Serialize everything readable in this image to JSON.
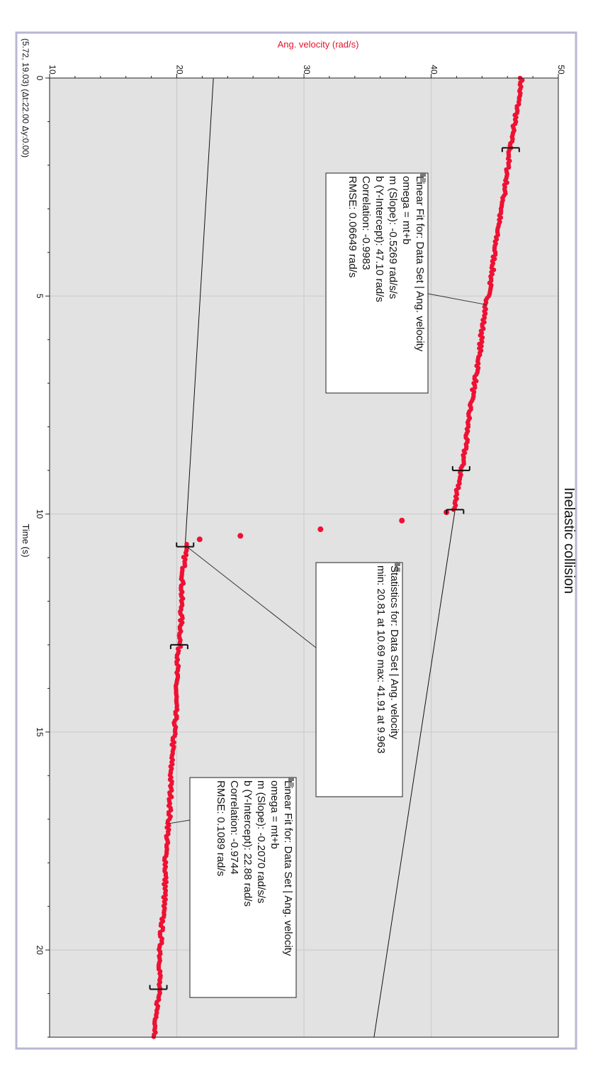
{
  "chart_data": {
    "type": "scatter",
    "title": "Inelastic collision",
    "xlabel": "Time (s)",
    "ylabel": "Ang. velocity (rad/s)",
    "xlim": [
      0,
      22
    ],
    "ylim": [
      10,
      50
    ],
    "x_ticks": [
      "0",
      "5",
      "10",
      "15",
      "20"
    ],
    "y_ticks": [
      "10",
      "20",
      "30",
      "40",
      "50"
    ],
    "grid": true,
    "coordinate_readout": "(5.72, 19.03) (Δt:22.00 Δy:0.00)",
    "colors": {
      "data": "#ee1133",
      "axis_label": "#e8102c",
      "plot_bg": "#e2e2e2",
      "frame": "#b7b7d4",
      "grid": "#c9c9c9"
    },
    "series": [
      {
        "name": "Data Set | Ang. velocity",
        "segments": [
          {
            "t_start": 0,
            "t_end": 9.9,
            "m": -0.5269,
            "b": 47.1
          },
          {
            "t_start": 10.69,
            "t_end": 22,
            "m": -0.207,
            "b": 22.88
          }
        ],
        "transition_points": [
          {
            "x": 9.96,
            "y": 41.2
          },
          {
            "x": 10.15,
            "y": 37.7
          },
          {
            "x": 10.35,
            "y": 31.3
          },
          {
            "x": 10.5,
            "y": 25.0
          },
          {
            "x": 10.58,
            "y": 21.8
          }
        ]
      }
    ],
    "fits": [
      {
        "type": "linear",
        "m": -0.5269,
        "b": 47.1,
        "range": [
          1.6,
          9.0
        ]
      },
      {
        "type": "linear",
        "m": -0.207,
        "b": 22.88,
        "range": [
          10.69,
          22.0
        ]
      }
    ],
    "bracket_times": [
      1.6,
      9.0,
      9.9,
      10.75,
      13.0,
      20.9
    ],
    "annotations": [
      {
        "header": "Linear Fit for: Data Set | Ang. velocity",
        "lines": [
          "omega = mt+b",
          "m (Slope): -0.5269 rad/s/s",
          "b (Y-Intercept): 47.10 rad/s",
          "Correlation: -0.9983",
          "RMSE: 0.06649 rad/s"
        ],
        "points_to": {
          "x": 5.2,
          "y": 44.36
        }
      },
      {
        "header": "Statistics for: Data Set | Ang. velocity",
        "lines": [
          "min: 20.81 at 10.69 max: 41.91 at 9.963"
        ],
        "points_to": {
          "x": 10.75,
          "y": 20.8
        }
      },
      {
        "header": "Linear Fit for: Data Set | Ang. velocity",
        "lines": [
          "omega = mt+b",
          "m (Slope): -0.2070 rad/s/s",
          "b (Y-Intercept): 22.88 rad/s",
          "Correlation: -0.9744",
          "RMSE: 0.1089 rad/s"
        ],
        "points_to": {
          "x": 17.1,
          "y": 19.35
        }
      }
    ]
  }
}
